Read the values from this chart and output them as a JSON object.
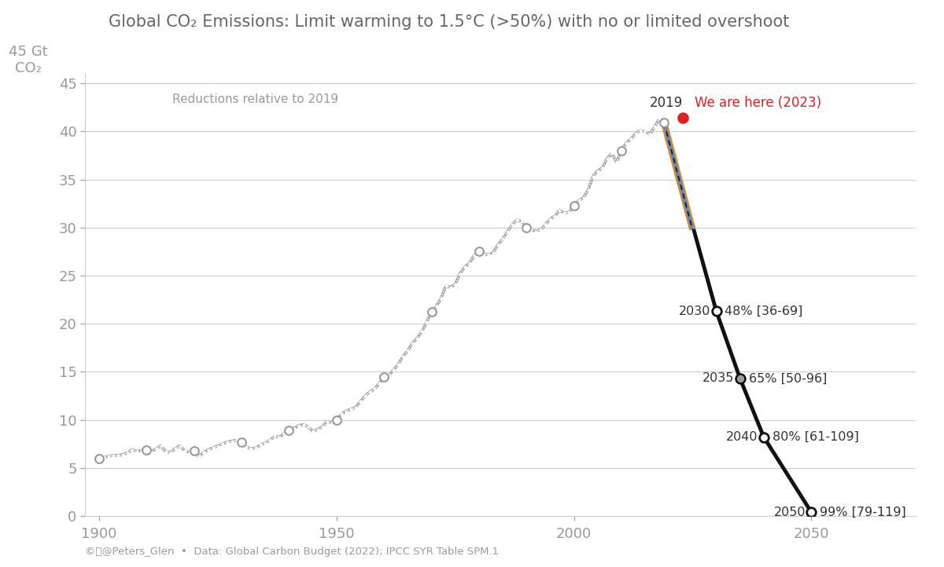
{
  "title": "Global CO₂ Emissions: Limit warming to 1.5°C (>50%) with no or limited overshoot",
  "subtitle": "Reductions relative to 2019",
  "footer": "©ⓒ@Peters_Glen  •  Data: Global Carbon Budget (2022); IPCC SYR Table SPM.1",
  "bg_color": "#ffffff",
  "plot_bg_color": "#ffffff",
  "ylim": [
    0,
    46
  ],
  "xlim": [
    1897,
    2072
  ],
  "yticks": [
    0,
    5,
    10,
    15,
    20,
    25,
    30,
    35,
    40,
    45
  ],
  "xticks": [
    1900,
    1950,
    2000,
    2050
  ],
  "historical_years": [
    1900,
    1901,
    1902,
    1903,
    1904,
    1905,
    1906,
    1907,
    1908,
    1909,
    1910,
    1911,
    1912,
    1913,
    1914,
    1915,
    1916,
    1917,
    1918,
    1919,
    1920,
    1921,
    1922,
    1923,
    1924,
    1925,
    1926,
    1927,
    1928,
    1929,
    1930,
    1931,
    1932,
    1933,
    1934,
    1935,
    1936,
    1937,
    1938,
    1939,
    1940,
    1941,
    1942,
    1943,
    1944,
    1945,
    1946,
    1947,
    1948,
    1949,
    1950,
    1951,
    1952,
    1953,
    1954,
    1955,
    1956,
    1957,
    1958,
    1959,
    1960,
    1961,
    1962,
    1963,
    1964,
    1965,
    1966,
    1967,
    1968,
    1969,
    1970,
    1971,
    1972,
    1973,
    1974,
    1975,
    1976,
    1977,
    1978,
    1979,
    1980,
    1981,
    1982,
    1983,
    1984,
    1985,
    1986,
    1987,
    1988,
    1989,
    1990,
    1991,
    1992,
    1993,
    1994,
    1995,
    1996,
    1997,
    1998,
    1999,
    2000,
    2001,
    2002,
    2003,
    2004,
    2005,
    2006,
    2007,
    2008,
    2009,
    2010,
    2011,
    2012,
    2013,
    2014,
    2015,
    2016,
    2017,
    2018,
    2019
  ],
  "historical_values": [
    6.0,
    6.1,
    6.2,
    6.3,
    6.3,
    6.4,
    6.6,
    6.9,
    6.7,
    6.8,
    6.9,
    6.7,
    7.0,
    7.3,
    6.7,
    6.6,
    7.0,
    7.3,
    6.8,
    6.6,
    6.8,
    6.2,
    6.6,
    6.9,
    7.1,
    7.3,
    7.5,
    7.7,
    7.8,
    7.9,
    7.7,
    7.2,
    7.0,
    7.1,
    7.4,
    7.6,
    7.9,
    8.3,
    8.2,
    8.6,
    8.9,
    9.1,
    9.4,
    9.5,
    9.3,
    8.8,
    9.0,
    9.3,
    9.8,
    9.7,
    10.0,
    10.6,
    10.9,
    11.1,
    11.3,
    11.9,
    12.5,
    12.9,
    13.2,
    13.8,
    14.5,
    14.6,
    15.2,
    15.8,
    16.6,
    17.2,
    18.0,
    18.5,
    19.2,
    20.2,
    21.2,
    21.8,
    22.6,
    23.9,
    23.8,
    24.1,
    25.2,
    25.9,
    26.3,
    27.1,
    27.5,
    27.2,
    27.2,
    27.4,
    28.2,
    28.8,
    29.6,
    30.3,
    30.8,
    30.6,
    30.0,
    29.8,
    29.6,
    29.8,
    30.3,
    30.9,
    31.2,
    31.8,
    31.5,
    31.6,
    32.3,
    32.8,
    33.1,
    33.9,
    35.3,
    35.9,
    36.2,
    37.2,
    37.7,
    36.8,
    38.0,
    38.8,
    39.2,
    39.8,
    40.1,
    40.0,
    39.7,
    40.5,
    41.3,
    40.9
  ],
  "decade_marker_years": [
    1900,
    1910,
    1920,
    1930,
    1940,
    1950,
    1960,
    1970,
    1980,
    1990,
    2000,
    2010
  ],
  "decade_marker_values": [
    6.0,
    6.9,
    6.8,
    7.7,
    8.9,
    10.0,
    14.5,
    21.2,
    27.5,
    30.0,
    32.3,
    38.0
  ],
  "year_2019": 2019,
  "value_2019": 40.9,
  "year_2023": 2023,
  "value_2023": 41.4,
  "target_years": [
    2019,
    2030,
    2035,
    2040,
    2050
  ],
  "target_values": [
    40.9,
    21.3,
    14.3,
    8.2,
    0.41
  ],
  "orange_segment_years": [
    2019,
    2020,
    2021,
    2022,
    2023,
    2024,
    2025
  ],
  "orange_segment_values": [
    40.9,
    39.0,
    37.2,
    35.3,
    33.5,
    31.6,
    29.8
  ],
  "blue_segment_years": [
    2019,
    2020,
    2021,
    2022,
    2023,
    2024,
    2025
  ],
  "blue_segment_values": [
    40.9,
    39.0,
    37.2,
    35.3,
    33.5,
    31.6,
    29.8
  ],
  "milestone_years": [
    2030,
    2035,
    2040,
    2050
  ],
  "milestone_values": [
    21.3,
    14.3,
    8.2,
    0.41
  ],
  "milestone_year_labels": [
    "2030",
    "2035",
    "2040",
    "2050"
  ],
  "milestone_pct_labels": [
    "48% [36-69]",
    "65% [50-96]",
    "80% [61-109]",
    "99% [79-119]"
  ],
  "milestone_dot_small": [
    false,
    true,
    false,
    false
  ],
  "gray_color": "#999999",
  "gray_line_color": "#888888",
  "black_color": "#111111",
  "orange_color": "#e8821e",
  "blue_color": "#4a8fd4",
  "red_color": "#dd2222",
  "grid_color": "#cccccc",
  "text_color_dark": "#333333",
  "text_color_mid": "#666666",
  "text_color_light": "#999999"
}
